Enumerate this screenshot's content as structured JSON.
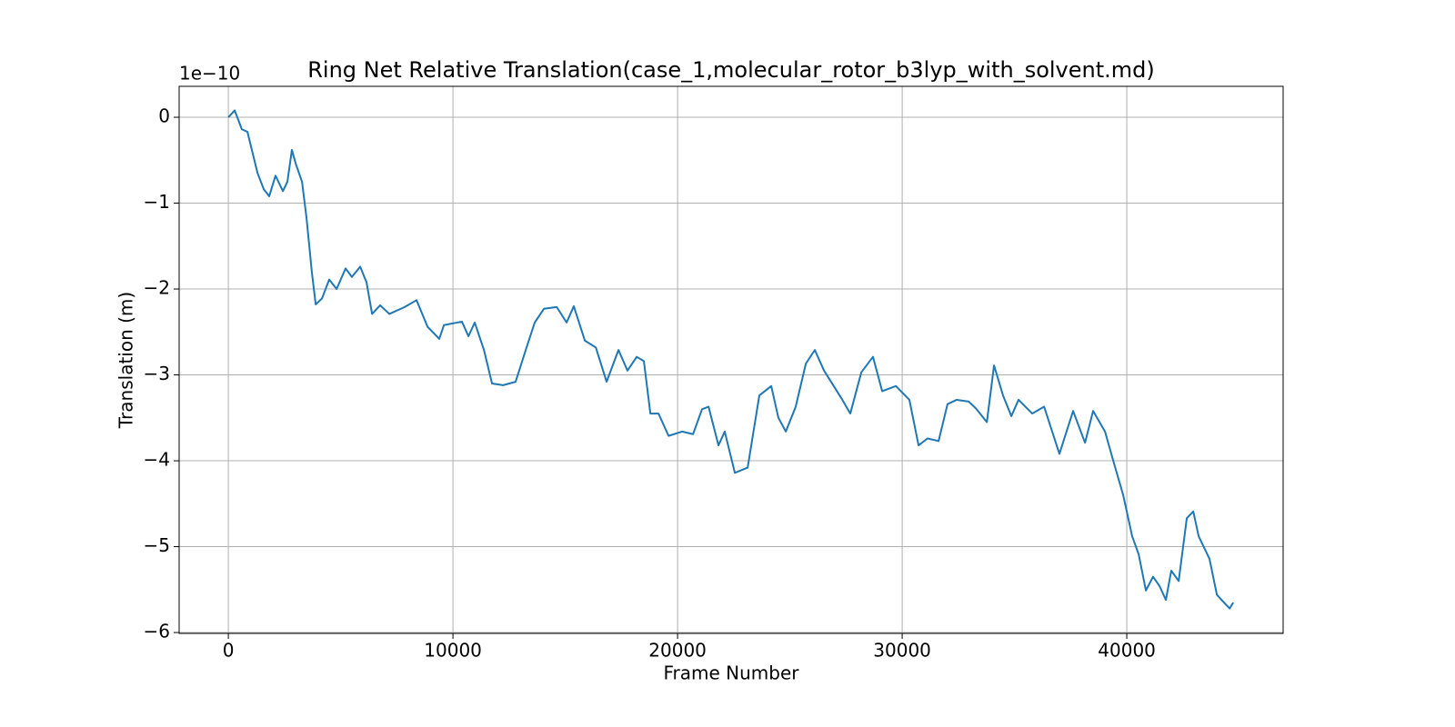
{
  "chart_data": {
    "type": "line",
    "title": "Ring Net Relative Translation(case_1,molecular_rotor_b3lyp_with_solvent.md)",
    "x_label": "Frame Number",
    "y_label": "Translation (m)",
    "y_offset_label": "1e−10",
    "xlim": [
      -2190,
      46960
    ],
    "ylim": [
      -6.01,
      0.36
    ],
    "xticks": [
      0,
      10000,
      20000,
      30000,
      40000
    ],
    "yticks": [
      {
        "value": -6,
        "label": "−6"
      },
      {
        "value": -5,
        "label": "−5"
      },
      {
        "value": -4,
        "label": "−4"
      },
      {
        "value": -3,
        "label": "−3"
      },
      {
        "value": -2,
        "label": "−2"
      },
      {
        "value": -1,
        "label": "−1"
      },
      0
    ],
    "grid": true,
    "series": [
      {
        "color": "#1f77b4",
        "x": [
          0,
          283,
          600,
          850,
          1300,
          1580,
          1820,
          2100,
          2430,
          2630,
          2830,
          3000,
          3280,
          3480,
          3720,
          3890,
          4170,
          4490,
          4820,
          5220,
          5500,
          5870,
          6150,
          6400,
          6760,
          7170,
          7850,
          8380,
          8870,
          9390,
          9600,
          10400,
          10690,
          10970,
          11380,
          11740,
          12230,
          12790,
          13240,
          13640,
          14050,
          14620,
          15060,
          15380,
          15870,
          16360,
          16840,
          17370,
          17770,
          18180,
          18500,
          18790,
          19150,
          19600,
          20200,
          20690,
          21090,
          21380,
          21820,
          22100,
          22550,
          23120,
          23640,
          24170,
          24490,
          24820,
          25260,
          25710,
          26110,
          26520,
          27290,
          27690,
          28180,
          28700,
          29110,
          29720,
          30320,
          30730,
          31130,
          31620,
          32020,
          32430,
          32960,
          33280,
          33770,
          34090,
          34490,
          34860,
          35180,
          35790,
          36320,
          37000,
          37610,
          38140,
          38500,
          39030,
          39430,
          39840,
          40240,
          40530,
          40850,
          41170,
          41460,
          41740,
          41980,
          42310,
          42670,
          42960,
          43200,
          43680,
          44010,
          44290,
          44580,
          44740
        ],
        "values": [
          0,
          0.08,
          -0.14,
          -0.17,
          -0.65,
          -0.84,
          -0.92,
          -0.68,
          -0.86,
          -0.75,
          -0.38,
          -0.54,
          -0.75,
          -1.17,
          -1.81,
          -2.18,
          -2.11,
          -1.89,
          -2.0,
          -1.76,
          -1.86,
          -1.74,
          -1.92,
          -2.29,
          -2.19,
          -2.29,
          -2.21,
          -2.13,
          -2.44,
          -2.58,
          -2.42,
          -2.38,
          -2.55,
          -2.39,
          -2.71,
          -3.1,
          -3.12,
          -3.08,
          -2.71,
          -2.39,
          -2.23,
          -2.21,
          -2.39,
          -2.2,
          -2.6,
          -2.68,
          -3.08,
          -2.71,
          -2.95,
          -2.79,
          -2.84,
          -3.45,
          -3.45,
          -3.71,
          -3.66,
          -3.69,
          -3.4,
          -3.37,
          -3.82,
          -3.66,
          -4.14,
          -4.08,
          -3.24,
          -3.13,
          -3.5,
          -3.66,
          -3.37,
          -2.87,
          -2.71,
          -2.95,
          -3.27,
          -3.45,
          -2.97,
          -2.79,
          -3.19,
          -3.13,
          -3.29,
          -3.82,
          -3.74,
          -3.77,
          -3.34,
          -3.29,
          -3.31,
          -3.39,
          -3.55,
          -2.89,
          -3.24,
          -3.48,
          -3.29,
          -3.45,
          -3.37,
          -3.92,
          -3.42,
          -3.79,
          -3.42,
          -3.66,
          -4.03,
          -4.4,
          -4.88,
          -5.09,
          -5.51,
          -5.35,
          -5.46,
          -5.62,
          -5.28,
          -5.4,
          -4.67,
          -4.59,
          -4.88,
          -5.14,
          -5.56,
          -5.64,
          -5.72,
          -5.65
        ]
      }
    ]
  }
}
